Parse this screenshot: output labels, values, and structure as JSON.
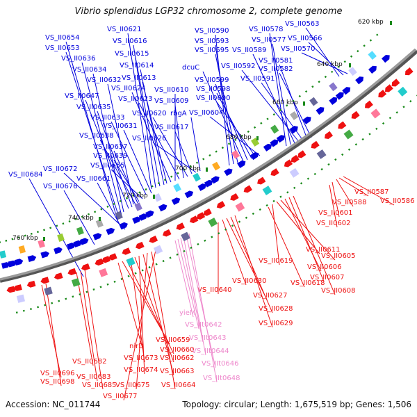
{
  "title": "Vibrio splendidus LGP32 chromosome 2, complete genome",
  "footer": {
    "accession": "Accession: NC_011744",
    "summary": "Topology: circular; Length: 1,675,519 bp; Genes: 1,506"
  },
  "colors": {
    "forward": "#0000dd",
    "reverse": "#ee1111",
    "pseudo": "#ee88cc",
    "backbone": "#888888",
    "tick_mark": "#1a8a1a"
  },
  "ticks": [
    "620 kbp",
    "640 kbp",
    "660 kbp",
    "680 kbp",
    "700 kbp",
    "720 kbp",
    "740 kbp",
    "760 kbp"
  ],
  "forward_labels": [
    "VS_II0654",
    "VS_II0653",
    "VS_II0636",
    "VS_II0634",
    "VS_II0647",
    "VS_II0635",
    "VS_II0638",
    "VS_II0637",
    "VS_II0639",
    "VS_II0655",
    "VS_II0672",
    "VS_II0684",
    "VS_II0676",
    "VS_II0661",
    "VS_II0621",
    "VS_II0616",
    "VS_II0615",
    "VS_II0614",
    "VS_II0632",
    "VS_II0613",
    "VS_II0624",
    "VS_II0610",
    "VS_II0623",
    "VS_II0609",
    "VS_II0633",
    "VS_II0620",
    "VS_II0631",
    "VS_II0617",
    "VS_II0626",
    "rbgA",
    "VS_II0590",
    "VS_II0593",
    "VS_II0595",
    "dcuC",
    "VS_II0599",
    "VS_II0598",
    "VS_II0600",
    "VS_II0604",
    "VS_II0578",
    "VS_II0577",
    "VS_II0589",
    "VS_II0592",
    "VS_II0591",
    "VS_II0581",
    "VS_II0582",
    "VS_II0563",
    "VS_II0566",
    "VS_II0570"
  ],
  "reverse_labels": [
    "VS_II0587",
    "VS_II0588",
    "VS_II0586",
    "VS_II0601",
    "VS_II0602",
    "VS_II0611",
    "VS_II0605",
    "VS_II0619",
    "VS_II0606",
    "VS_II0618",
    "VS_II0607",
    "VS_II0608",
    "VS_II0630",
    "VS_II0640",
    "VS_II0627",
    "VS_II0628",
    "VS_II0629",
    "nirD",
    "VS_II0659",
    "VS_II0660",
    "VS_II0673",
    "VS_II0662",
    "VS_II0674",
    "VS_II0663",
    "VS_II0675",
    "VS_II0664",
    "VS_II0677",
    "VS_II0682",
    "VS_II0683",
    "VS_II0685",
    "VS_II0696",
    "VS_II0698"
  ],
  "pseudo_labels": [
    "yieM",
    "VS_IIt0642",
    "VS_IIt0643",
    "VS_IIt0644",
    "VS_IIt0646",
    "VS_IIt0648"
  ]
}
